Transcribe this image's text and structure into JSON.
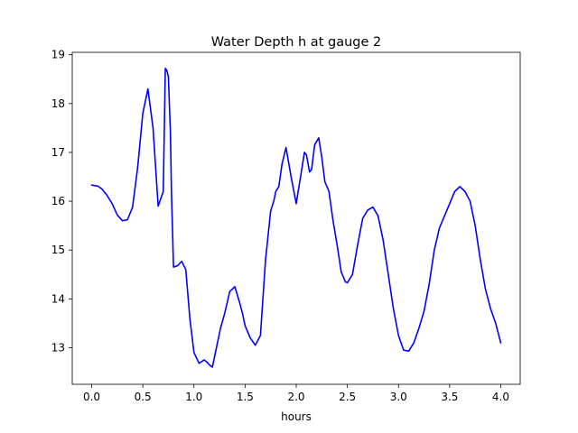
{
  "chart_data": {
    "type": "line",
    "title": "Water Depth h at gauge 2",
    "xlabel": "hours",
    "ylabel": "",
    "xlim": [
      -0.19,
      4.19
    ],
    "ylim": [
      12.25,
      19.05
    ],
    "xticks": [
      0.0,
      0.5,
      1.0,
      1.5,
      2.0,
      2.5,
      3.0,
      3.5,
      4.0
    ],
    "xtick_labels": [
      "0.0",
      "0.5",
      "1.0",
      "1.5",
      "2.0",
      "2.5",
      "3.0",
      "3.5",
      "4.0"
    ],
    "yticks": [
      13,
      14,
      15,
      16,
      17,
      18,
      19
    ],
    "ytick_labels": [
      "13",
      "14",
      "15",
      "16",
      "17",
      "18",
      "19"
    ],
    "grid": false,
    "series": [
      {
        "color": "#0000ff",
        "x": [
          0.0,
          0.06,
          0.1,
          0.15,
          0.2,
          0.25,
          0.3,
          0.35,
          0.4,
          0.45,
          0.5,
          0.55,
          0.6,
          0.65,
          0.7,
          0.72,
          0.735,
          0.75,
          0.77,
          0.78,
          0.8,
          0.84,
          0.88,
          0.92,
          0.96,
          1.0,
          1.05,
          1.1,
          1.13,
          1.15,
          1.18,
          1.22,
          1.26,
          1.3,
          1.35,
          1.4,
          1.45,
          1.48,
          1.5,
          1.55,
          1.6,
          1.65,
          1.7,
          1.75,
          1.78,
          1.8,
          1.83,
          1.86,
          1.9,
          1.95,
          2.0,
          2.05,
          2.08,
          2.1,
          2.13,
          2.15,
          2.18,
          2.22,
          2.25,
          2.28,
          2.32,
          2.36,
          2.4,
          2.44,
          2.48,
          2.5,
          2.55,
          2.6,
          2.65,
          2.7,
          2.75,
          2.8,
          2.85,
          2.9,
          2.95,
          3.0,
          3.05,
          3.1,
          3.15,
          3.2,
          3.25,
          3.3,
          3.35,
          3.4,
          3.45,
          3.5,
          3.55,
          3.6,
          3.65,
          3.7,
          3.75,
          3.8,
          3.85,
          3.9,
          3.95,
          4.0
        ],
        "y": [
          16.33,
          16.31,
          16.25,
          16.12,
          15.95,
          15.72,
          15.6,
          15.62,
          15.88,
          16.7,
          17.8,
          18.3,
          17.5,
          15.9,
          16.2,
          18.72,
          18.68,
          18.55,
          17.4,
          16.2,
          14.65,
          14.68,
          14.77,
          14.6,
          13.6,
          12.9,
          12.68,
          12.75,
          12.7,
          12.65,
          12.6,
          13.0,
          13.4,
          13.7,
          14.15,
          14.25,
          13.9,
          13.65,
          13.45,
          13.2,
          13.05,
          13.25,
          14.8,
          15.8,
          16.0,
          16.2,
          16.3,
          16.75,
          17.1,
          16.5,
          15.95,
          16.6,
          17.0,
          16.95,
          16.6,
          16.65,
          17.15,
          17.3,
          16.9,
          16.4,
          16.2,
          15.6,
          15.1,
          14.55,
          14.35,
          14.33,
          14.5,
          15.1,
          15.65,
          15.82,
          15.88,
          15.7,
          15.2,
          14.5,
          13.8,
          13.25,
          12.95,
          12.93,
          13.1,
          13.4,
          13.75,
          14.3,
          15.0,
          15.45,
          15.7,
          15.95,
          16.2,
          16.3,
          16.2,
          16.0,
          15.5,
          14.8,
          14.2,
          13.8,
          13.5,
          13.1
        ]
      }
    ]
  }
}
